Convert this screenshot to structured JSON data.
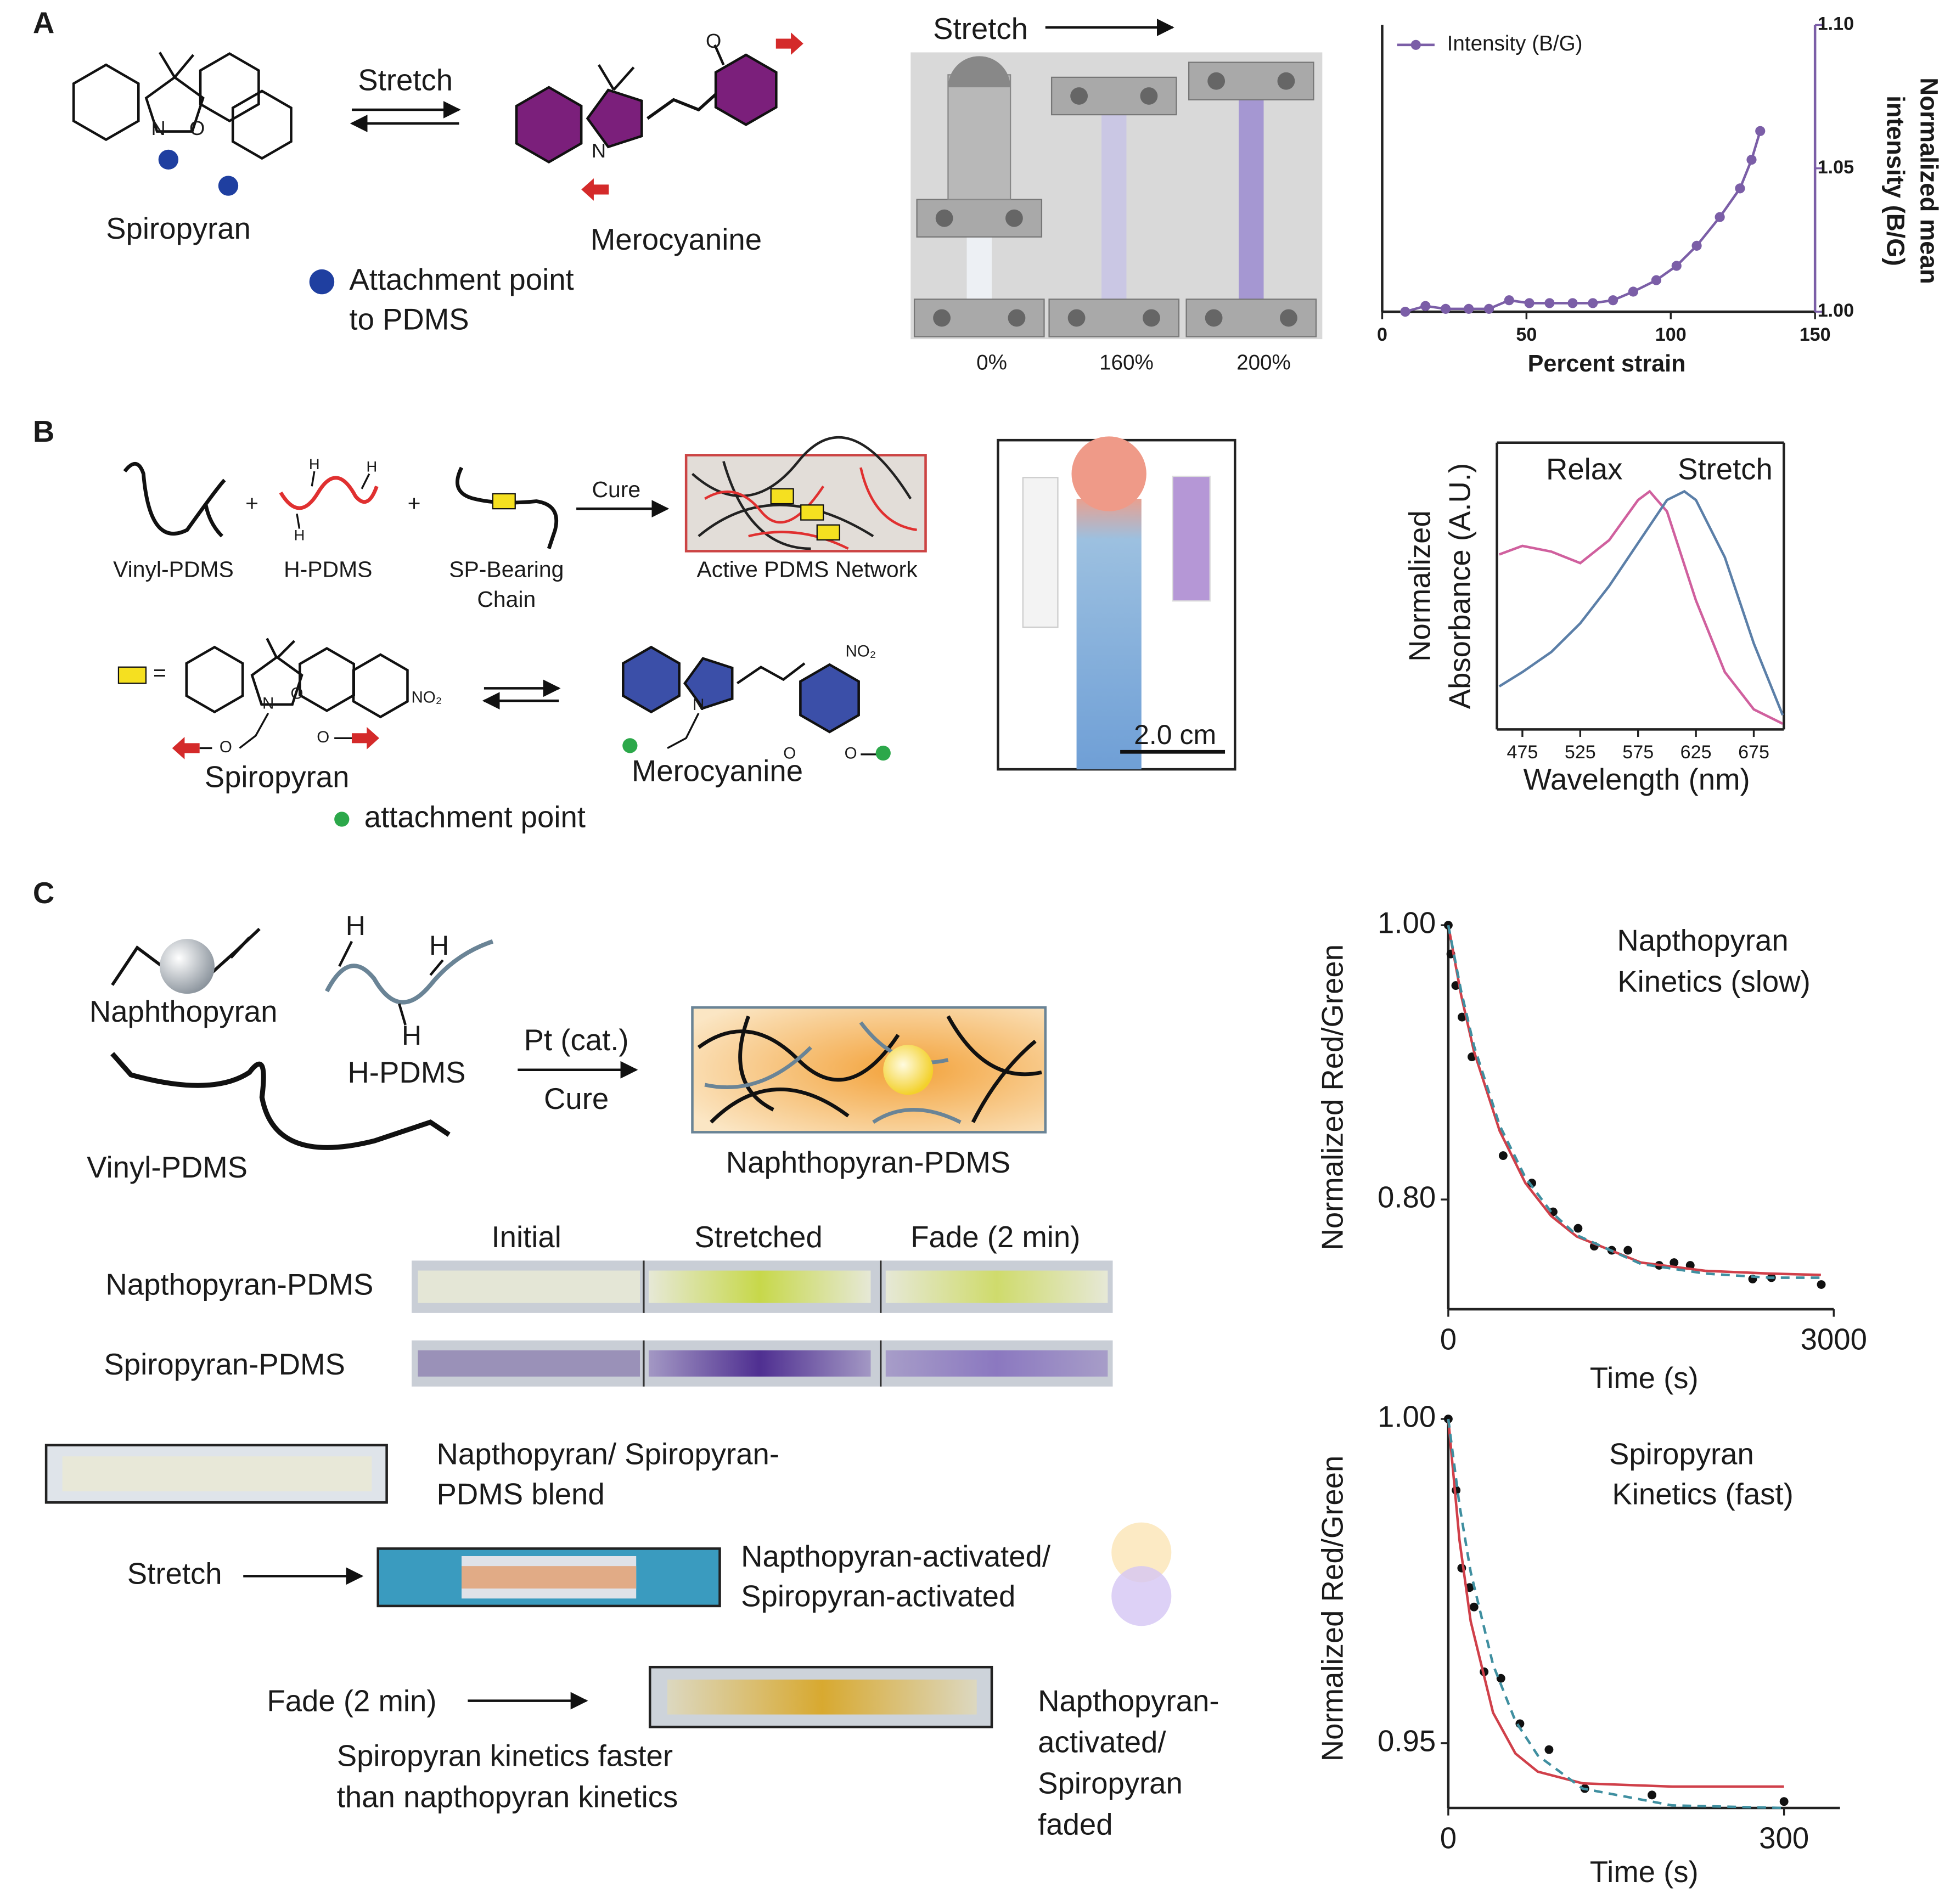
{
  "panels": {
    "a": {
      "label": "A",
      "arrow_label": "Stretch",
      "reactant": "Spiropyran",
      "product": "Merocyanine",
      "reactant_atoms": [
        "N",
        "O"
      ],
      "product_atoms": [
        "O",
        "N"
      ],
      "legend": [
        "Attachment point",
        "to PDMS"
      ],
      "photo_title": "Stretch",
      "photo_labels": [
        "0%",
        "160%",
        "200%"
      ]
    },
    "b": {
      "label": "B",
      "components": {
        "vinyl": "Vinyl-PDMS",
        "h": "H-PDMS",
        "sp": [
          "SP-Bearing",
          "Chain"
        ]
      },
      "h_atoms": [
        "H",
        "H",
        "H"
      ],
      "plus": [
        "+",
        "+"
      ],
      "arrow_label": "Cure",
      "network": "Active PDMS Network",
      "key": "=",
      "reactant": "Spiropyran",
      "reactant_atoms": [
        "N",
        "O",
        "O",
        "O"
      ],
      "reactant_group": "NO₂",
      "product": "Merocyanine",
      "product_atoms": [
        "N",
        "O",
        "O"
      ],
      "product_group": "NO₂",
      "legend": "attachment point",
      "scale": "2.0 cm"
    },
    "c": {
      "label": "C",
      "naphthopyran": "Naphthopyran",
      "h_pdms": "H-PDMS",
      "h_atoms": [
        "H",
        "H",
        "H"
      ],
      "vinyl": "Vinyl-PDMS",
      "catalyst": "Pt (cat.)",
      "arrow_label": "Cure",
      "product": "Naphthopyran-PDMS",
      "table": {
        "columns": [
          "Initial",
          "Stretched",
          "Fade (2 min)"
        ],
        "rows": [
          "Napthopyran-PDMS",
          "Spiropyran-PDMS"
        ]
      },
      "blend": [
        "Napthopyran/ Spiropyran-",
        "PDMS blend"
      ],
      "stretch": "Stretch",
      "stretch_result": [
        "Napthopyran-activated/",
        "Spiropyran-activated"
      ],
      "fade": "Fade (2 min)",
      "fade_note": [
        "Spiropyran kinetics faster",
        "than napthopyran kinetics"
      ],
      "fade_result": [
        "Napthopyran-",
        "activated/",
        "Spiropyran",
        "faded"
      ]
    }
  },
  "chart_data": [
    {
      "type": "line",
      "xlabel": "Percent strain",
      "y2label": [
        "Normalized mean",
        "intensity (B/G)"
      ],
      "xlim": [
        0,
        150
      ],
      "xticks": [
        0,
        50,
        100,
        150
      ],
      "y2lim": [
        1.0,
        1.1
      ],
      "y2ticks": [
        {
          "value": 1,
          "label": "1.00"
        },
        1.05,
        {
          "value": 1.1,
          "label": "1.10"
        }
      ],
      "legend": "upper left",
      "series": [
        {
          "name": "Intensity (B/G)",
          "color": "#7b5ea7",
          "axis": "y2",
          "markers": true,
          "x": [
            8,
            15,
            22,
            30,
            37,
            44,
            51,
            58,
            66,
            73,
            80,
            87,
            95,
            102,
            109,
            117,
            124,
            128,
            131
          ],
          "values": [
            1.0,
            1.002,
            1.001,
            1.001,
            1.001,
            1.004,
            1.003,
            1.003,
            1.003,
            1.003,
            1.004,
            1.007,
            1.011,
            1.016,
            1.023,
            1.033,
            1.043,
            1.053,
            1.063
          ]
        }
      ]
    },
    {
      "type": "line",
      "xlabel": "Wavelength (nm)",
      "ylabel": [
        "Normalized",
        "Absorbance (A.U.)"
      ],
      "xlim": [
        453,
        701
      ],
      "xticks": [
        475,
        525,
        575,
        625,
        675
      ],
      "ylim": [
        0,
        1
      ],
      "series": [
        {
          "name": "Relax",
          "color": "#d0609e",
          "x": [
            455,
            475,
            500,
            525,
            550,
            575,
            585,
            600,
            625,
            650,
            675,
            700
          ],
          "values": [
            0.61,
            0.64,
            0.62,
            0.58,
            0.66,
            0.8,
            0.83,
            0.76,
            0.45,
            0.2,
            0.07,
            0.02
          ]
        },
        {
          "name": "Stretch",
          "color": "#5b7fa8",
          "x": [
            455,
            475,
            500,
            525,
            550,
            575,
            600,
            615,
            625,
            650,
            675,
            700
          ],
          "values": [
            0.15,
            0.2,
            0.27,
            0.37,
            0.5,
            0.65,
            0.8,
            0.83,
            0.8,
            0.6,
            0.3,
            0.05
          ]
        }
      ]
    },
    {
      "type": "scatter",
      "title": [
        "Napthopyran",
        "Kinetics (slow)"
      ],
      "xlabel": "Time (s)",
      "ylabel": "Normalized Red/Green",
      "xlim": [
        0,
        3000
      ],
      "xticks": [
        0,
        3000
      ],
      "ylim": [
        0.72,
        1.0
      ],
      "yticks": [
        {
          "value": 0.8,
          "label": "0.80"
        },
        {
          "value": 1,
          "label": "1.00"
        }
      ],
      "series": [
        {
          "color": "#111111",
          "style": "points",
          "x": [
            0,
            20,
            58,
            107,
            184,
            427,
            650,
            816,
            1010,
            1136,
            1272,
            1398,
            1641,
            1757,
            1883,
            2369,
            2515,
            2903
          ],
          "values": [
            1.0,
            0.979,
            0.956,
            0.933,
            0.904,
            0.832,
            0.812,
            0.791,
            0.779,
            0.766,
            0.763,
            0.763,
            0.752,
            0.754,
            0.752,
            0.742,
            0.743,
            0.738
          ]
        },
        {
          "color": "#d0404a",
          "style": "solid",
          "x": [
            0,
            100,
            200,
            400,
            600,
            800,
            1000,
            1500,
            2000,
            2500,
            2900
          ],
          "values": [
            1.0,
            0.949,
            0.908,
            0.85,
            0.812,
            0.788,
            0.773,
            0.754,
            0.748,
            0.746,
            0.745
          ]
        },
        {
          "color": "#3f8fa0",
          "style": "dashed",
          "x": [
            0,
            100,
            200,
            400,
            600,
            800,
            1000,
            1500,
            2000,
            2500,
            2900
          ],
          "values": [
            1.0,
            0.952,
            0.912,
            0.854,
            0.816,
            0.791,
            0.774,
            0.753,
            0.746,
            0.743,
            0.743
          ]
        }
      ]
    },
    {
      "type": "scatter",
      "title": [
        "Spiropyran",
        "Kinetics (fast)"
      ],
      "xlabel": "Time (s)",
      "ylabel": "Normalized Red/Green",
      "xlim": [
        0,
        350
      ],
      "xticks": [
        0,
        300
      ],
      "ylim": [
        0.94,
        1.0
      ],
      "yticks": [
        {
          "value": 0.95,
          "label": "0.95"
        },
        {
          "value": 1,
          "label": "1.00"
        }
      ],
      "series": [
        {
          "color": "#111111",
          "style": "points",
          "x": [
            0,
            7,
            12,
            19,
            23,
            32,
            47,
            64,
            90,
            122,
            182,
            300
          ],
          "values": [
            1.0,
            0.989,
            0.977,
            0.974,
            0.971,
            0.961,
            0.96,
            0.953,
            0.949,
            0.943,
            0.942,
            0.941
          ]
        },
        {
          "color": "#d0404a",
          "style": "solid",
          "x": [
            0,
            10,
            20,
            40,
            60,
            80,
            120,
            200,
            300
          ],
          "values": [
            1.0,
            0.9813,
            0.9688,
            0.9547,
            0.9484,
            0.9456,
            0.9438,
            0.9433,
            0.9433
          ]
        },
        {
          "color": "#3f8fa0",
          "style": "dashed",
          "x": [
            0,
            10,
            20,
            40,
            60,
            80,
            120,
            200,
            300
          ],
          "values": [
            1.0,
            0.9867,
            0.9764,
            0.9621,
            0.9534,
            0.9481,
            0.943,
            0.9404,
            0.94
          ]
        }
      ]
    }
  ]
}
